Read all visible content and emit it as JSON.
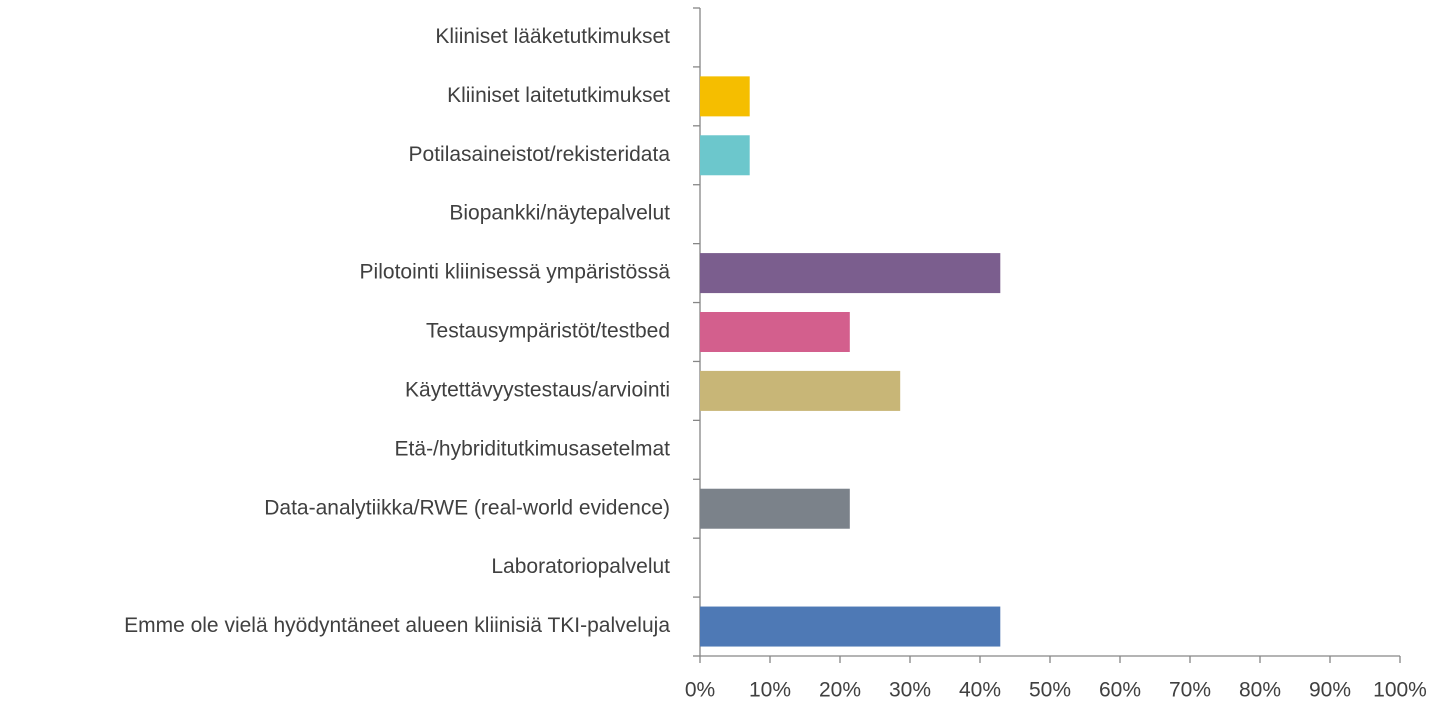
{
  "chart_data": {
    "type": "barh",
    "categories": [
      "Kliiniset lääketutkimukset",
      "Kliiniset laitetutkimukset",
      "Potilasaineistot/rekisteridata",
      "Biopankki/näytepalvelut",
      "Pilotointi kliinisessä ympäristössä",
      "Testausympäristöt/testbed",
      "Käytettävyystestaus/arviointi",
      "Etä-/hybriditutkimusasetelmat",
      "Data-analytiikka/RWE (real-world evidence)",
      "Laboratoriopalvelut",
      "Emme ole vielä hyödyntäneet alueen kliinisiä TKI-palveluja"
    ],
    "values": [
      0,
      7.1,
      7.1,
      0,
      42.9,
      21.4,
      28.6,
      0,
      21.4,
      0,
      42.9
    ],
    "colors": [
      null,
      "#f5be00",
      "#6cc7cc",
      null,
      "#7b5e8e",
      "#d35f8d",
      "#c8b677",
      null,
      "#7b828a",
      null,
      "#4e79b5"
    ],
    "xlim": [
      0,
      100
    ],
    "xticks": [
      {
        "value": 0,
        "label": "0%"
      },
      {
        "value": 10,
        "label": "10%"
      },
      {
        "value": 20,
        "label": "20%"
      },
      {
        "value": 30,
        "label": "30%"
      },
      {
        "value": 40,
        "label": "40%"
      },
      {
        "value": 50,
        "label": "50%"
      },
      {
        "value": 60,
        "label": "60%"
      },
      {
        "value": 70,
        "label": "70%"
      },
      {
        "value": 80,
        "label": "80%"
      },
      {
        "value": 90,
        "label": "90%"
      },
      {
        "value": 100,
        "label": "100%"
      }
    ],
    "grid": false
  }
}
